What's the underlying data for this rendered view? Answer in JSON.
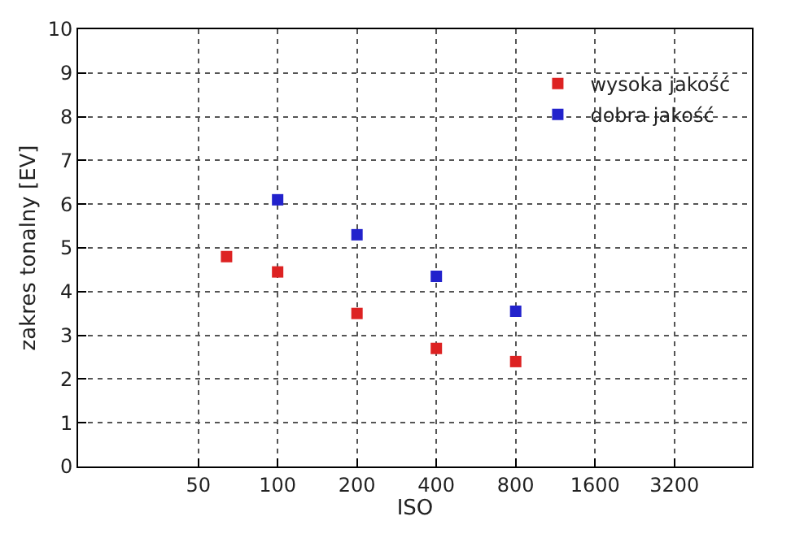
{
  "chart_data": {
    "type": "scatter",
    "xlabel": "ISO",
    "ylabel": "zakres tonalny [EV]",
    "log": "x",
    "xlim": [
      17.5,
      6300
    ],
    "xticks": [
      50,
      100,
      200,
      400,
      800,
      1600,
      3200
    ],
    "ylim": [
      0,
      10
    ],
    "yticks": [
      0,
      1,
      2,
      3,
      4,
      5,
      6,
      7,
      8,
      9,
      10
    ],
    "grid": true,
    "legend": "top right",
    "marker": "square",
    "series": [
      {
        "name": "wysoka jakość",
        "color": "#dd2222",
        "x": [
          64,
          100,
          200,
          400,
          800
        ],
        "values": [
          4.8,
          4.45,
          3.5,
          2.7,
          2.4
        ]
      },
      {
        "name": "dobra jakość",
        "color": "#2222cc",
        "x": [
          100,
          200,
          400,
          800
        ],
        "values": [
          6.1,
          5.3,
          4.35,
          3.55
        ]
      }
    ]
  }
}
